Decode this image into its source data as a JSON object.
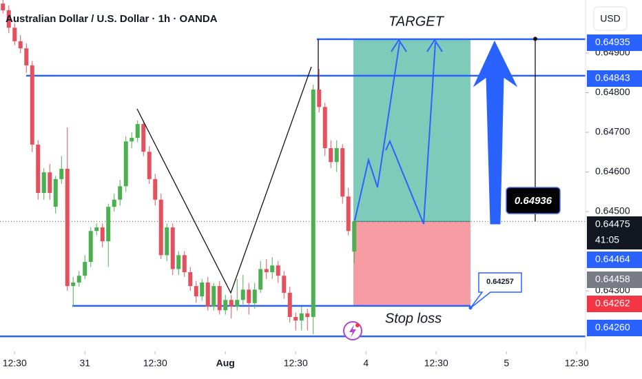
{
  "chart_data": {
    "type": "candlestick",
    "title": "Australian Dollar / U.S. Dollar · 1h · OANDA",
    "currency": "USD",
    "up_color": "#4caf50",
    "down_color": "#e5505f",
    "x": [
      0,
      1,
      2,
      3,
      4,
      5,
      6,
      7,
      8,
      9,
      10,
      11,
      12,
      13,
      14,
      15,
      16,
      17,
      18,
      19,
      20,
      21,
      22,
      23,
      24,
      25,
      26,
      27,
      28,
      29,
      30,
      31,
      32,
      33,
      34,
      35,
      36,
      37,
      38,
      39,
      40,
      41,
      42,
      43,
      44,
      45,
      46,
      47,
      48,
      49,
      50,
      51,
      52,
      53,
      54,
      55,
      56,
      57,
      58,
      59,
      60
    ],
    "open": [
      0.65025,
      0.65008,
      0.64964,
      0.6493,
      0.64912,
      0.64869,
      0.64669,
      0.64547,
      0.64599,
      0.64512,
      0.64582,
      0.64608,
      0.64312,
      0.64321,
      0.64338,
      0.64373,
      0.64451,
      0.6446,
      0.64425,
      0.64512,
      0.6453,
      0.64564,
      0.64677,
      0.64686,
      0.64721,
      0.64651,
      0.64582,
      0.6453,
      0.6439,
      0.6446,
      0.64355,
      0.6439,
      0.64347,
      0.64312,
      0.64286,
      0.64321,
      0.6426,
      0.64312,
      0.64251,
      0.64277,
      0.6426,
      0.64277,
      0.64303,
      0.64269,
      0.64303,
      0.64355,
      0.64347,
      0.64364,
      0.64338,
      0.64295,
      0.64234,
      0.64225,
      0.64243,
      0.64234,
      0.64808,
      0.64764,
      0.6466,
      0.64625,
      0.6466,
      0.64538,
      0.64399
    ],
    "high": [
      0.65034,
      0.6502,
      0.64975,
      0.64945,
      0.64925,
      0.6488,
      0.6468,
      0.6461,
      0.6462,
      0.6459,
      0.6464,
      0.64712,
      0.64335,
      0.6435,
      0.6439,
      0.6446,
      0.6447,
      0.6447,
      0.6452,
      0.64545,
      0.6458,
      0.6469,
      0.647,
      0.6473,
      0.6473,
      0.64665,
      0.64595,
      0.64545,
      0.6447,
      0.6447,
      0.644,
      0.644,
      0.6436,
      0.64325,
      0.6433,
      0.64335,
      0.6432,
      0.64325,
      0.6429,
      0.6429,
      0.6433,
      0.6434,
      0.6432,
      0.6432,
      0.64375,
      0.6438,
      0.64385,
      0.64375,
      0.6435,
      0.6431,
      0.64245,
      0.6426,
      0.64255,
      0.6482,
      0.6486,
      0.64775,
      0.6468,
      0.6468,
      0.6467,
      0.6456,
      0.6448
    ],
    "low": [
      0.65,
      0.6495,
      0.6492,
      0.649,
      0.6485,
      0.6465,
      0.6453,
      0.6453,
      0.6453,
      0.64495,
      0.6457,
      0.643,
      0.6426,
      0.6431,
      0.6433,
      0.6436,
      0.6444,
      0.6441,
      0.6436,
      0.645,
      0.64515,
      0.6455,
      0.6466,
      0.64675,
      0.6464,
      0.6457,
      0.64515,
      0.6438,
      0.64375,
      0.6434,
      0.6434,
      0.64335,
      0.643,
      0.6427,
      0.64275,
      0.6425,
      0.6425,
      0.6424,
      0.6424,
      0.6423,
      0.6425,
      0.64265,
      0.6424,
      0.64255,
      0.64295,
      0.6433,
      0.6433,
      0.6432,
      0.6428,
      0.6422,
      0.642,
      0.642,
      0.642,
      0.6419,
      0.6475,
      0.6464,
      0.6461,
      0.646,
      0.6452,
      0.6444,
      0.6437
    ],
    "close": [
      0.65008,
      0.64964,
      0.6493,
      0.64912,
      0.64869,
      0.64669,
      0.64547,
      0.64599,
      0.64547,
      0.64582,
      0.64608,
      0.64312,
      0.64321,
      0.64338,
      0.64373,
      0.64451,
      0.6446,
      0.64425,
      0.64512,
      0.6453,
      0.64564,
      0.64677,
      0.64686,
      0.64721,
      0.64651,
      0.64582,
      0.6453,
      0.6439,
      0.6446,
      0.64355,
      0.6439,
      0.64347,
      0.64312,
      0.64286,
      0.64321,
      0.6426,
      0.64312,
      0.64251,
      0.64277,
      0.6426,
      0.64277,
      0.64303,
      0.64269,
      0.64303,
      0.64355,
      0.64347,
      0.64364,
      0.64338,
      0.64295,
      0.64234,
      0.64225,
      0.64243,
      0.64234,
      0.64808,
      0.64764,
      0.6466,
      0.64625,
      0.6466,
      0.64538,
      0.64451,
      0.64475
    ],
    "xlim": [
      -0.5,
      99.5
    ],
    "xticks": [
      {
        "value": 2,
        "label": "12:30"
      },
      {
        "value": 14,
        "label": "31"
      },
      {
        "value": 26,
        "label": "12:30"
      },
      {
        "value": 38,
        "label": "Aug"
      },
      {
        "value": 50,
        "label": "12:30"
      },
      {
        "value": 62,
        "label": "4"
      },
      {
        "value": 74,
        "label": "12:30"
      },
      {
        "value": 86,
        "label": "5"
      },
      {
        "value": 98,
        "label": "12:30"
      }
    ],
    "ylim": [
      0.64147,
      0.65034
    ],
    "yticks": [
      {
        "value": 0.649,
        "label": "0.64900"
      },
      {
        "value": 0.648,
        "label": "0.64800"
      },
      {
        "value": 0.647,
        "label": "0.64700"
      },
      {
        "value": 0.646,
        "label": "0.64600"
      },
      {
        "value": 0.645,
        "label": "0.64500"
      },
      {
        "value": 0.643,
        "label": "0.64300"
      }
    ],
    "levels": [
      0.64935,
      0.64843,
      0.64262,
      0.64185
    ],
    "position": {
      "entry": 0.64475,
      "target": 0.64935,
      "stop": 0.64262,
      "target_label": "TARGET",
      "stop_label": "Stop loss"
    },
    "measure": 0.64936,
    "callout": 0.64257,
    "badges": [
      {
        "value": 0.64935,
        "color": "#2962ff"
      },
      {
        "value": 0.64843,
        "color": "#2962ff"
      },
      {
        "value": 0.64475,
        "color": "#131722",
        "countdown": "41:05"
      },
      {
        "value": 0.64464,
        "color": "#2962ff"
      },
      {
        "value": 0.64458,
        "color": "#787b86"
      },
      {
        "value": 0.64262,
        "color": "#f23645"
      },
      {
        "value": 0.6426,
        "label": "0.64260",
        "color": "#2962ff"
      }
    ]
  }
}
